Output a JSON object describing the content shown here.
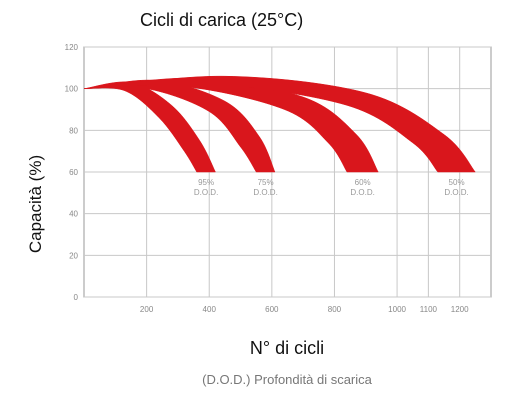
{
  "chart_data": {
    "type": "area",
    "title": "Cicli di carica (25°C)",
    "xlabel": "N° di cicli",
    "ylabel": "Capacità (%)",
    "subtitle": "(D.O.D.) Profondità di scarica",
    "xlim": [
      0,
      1300
    ],
    "ylim": [
      0,
      120
    ],
    "xticks": [
      200,
      400,
      600,
      800,
      1000,
      1100,
      1200
    ],
    "yticks": [
      0,
      20,
      40,
      60,
      80,
      100,
      120
    ],
    "grid": true,
    "color": "#d9161c",
    "series": [
      {
        "name": "95% D.O.D.",
        "label_pct": "95%",
        "label_dod": "D.O.D.",
        "upper": [
          [
            0,
            100
          ],
          [
            150,
            103
          ],
          [
            280,
            92
          ],
          [
            370,
            75
          ],
          [
            420,
            60
          ]
        ],
        "lower": [
          [
            0,
            100
          ],
          [
            130,
            99
          ],
          [
            240,
            86
          ],
          [
            320,
            70
          ],
          [
            360,
            60
          ]
        ]
      },
      {
        "name": "75% D.O.D.",
        "label_pct": "75%",
        "label_dod": "D.O.D.",
        "upper": [
          [
            0,
            100
          ],
          [
            230,
            104
          ],
          [
            450,
            94
          ],
          [
            560,
            77
          ],
          [
            610,
            60
          ]
        ],
        "lower": [
          [
            0,
            100
          ],
          [
            200,
            100
          ],
          [
            400,
            89
          ],
          [
            500,
            72
          ],
          [
            550,
            60
          ]
        ]
      },
      {
        "name": "60% D.O.D.",
        "label_pct": "60%",
        "label_dod": "D.O.D.",
        "upper": [
          [
            0,
            100
          ],
          [
            350,
            105
          ],
          [
            700,
            96
          ],
          [
            870,
            78
          ],
          [
            940,
            60
          ]
        ],
        "lower": [
          [
            0,
            100
          ],
          [
            320,
            101
          ],
          [
            640,
            90
          ],
          [
            780,
            74
          ],
          [
            840,
            60
          ]
        ]
      },
      {
        "name": "50% D.O.D.",
        "label_pct": "50%",
        "label_dod": "D.O.D.",
        "upper": [
          [
            0,
            100
          ],
          [
            450,
            106
          ],
          [
            900,
            98
          ],
          [
            1150,
            78
          ],
          [
            1250,
            60
          ]
        ],
        "lower": [
          [
            0,
            100
          ],
          [
            420,
            102
          ],
          [
            840,
            92
          ],
          [
            1050,
            74
          ],
          [
            1130,
            60
          ]
        ]
      }
    ]
  }
}
